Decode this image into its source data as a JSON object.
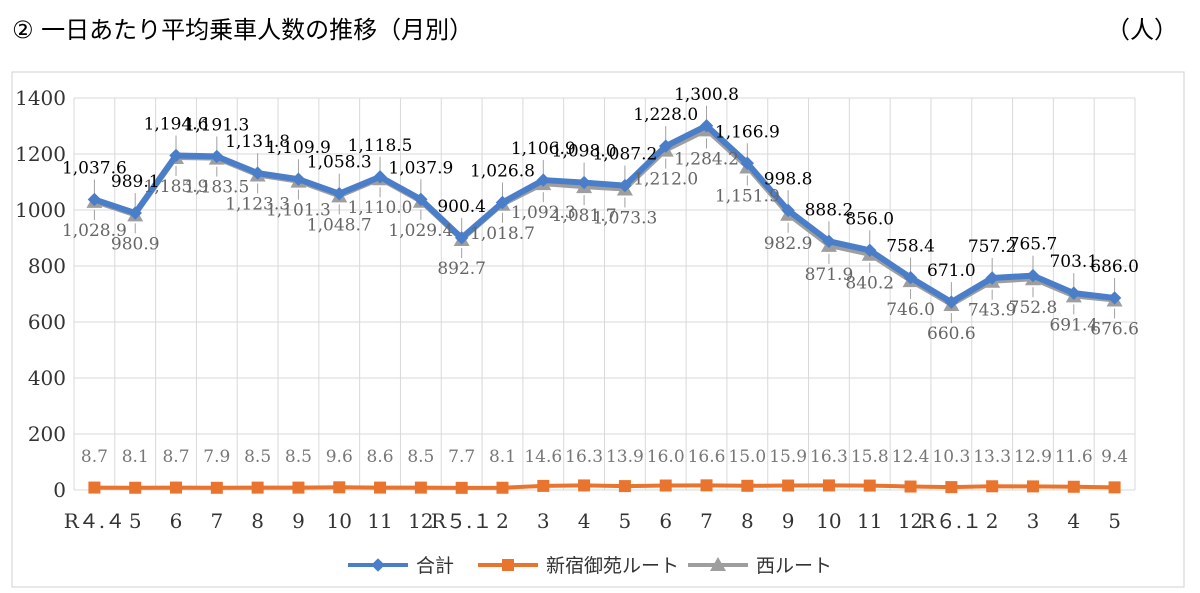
{
  "title": "② 一日あたり平均乗車人数の推移（月別）",
  "unit": "（人）",
  "colors": {
    "total": "#4A7EC9",
    "shinjuku": "#E8742D",
    "nishi": "#9E9E9E"
  },
  "chart_data": {
    "type": "line",
    "categories": [
      "R４.４",
      "5",
      "6",
      "7",
      "8",
      "9",
      "10",
      "11",
      "12",
      "R５.１",
      "2",
      "3",
      "4",
      "5",
      "6",
      "7",
      "8",
      "9",
      "10",
      "11",
      "12",
      "R６.１",
      "2",
      "3",
      "4",
      "5"
    ],
    "ylim": [
      0,
      1400
    ],
    "yticks": [
      0,
      200,
      400,
      600,
      800,
      1000,
      1200,
      1400
    ],
    "grid": true,
    "legend": "bottom",
    "series": [
      {
        "name": "合計",
        "marker": "diamond",
        "values": [
          1037.6,
          989.1,
          1194.6,
          1191.3,
          1131.8,
          1109.9,
          1058.3,
          1118.5,
          1037.9,
          900.4,
          1026.8,
          1106.9,
          1098.0,
          1087.2,
          1228.0,
          1300.8,
          1166.9,
          998.8,
          888.2,
          856.0,
          758.4,
          671.0,
          757.2,
          765.7,
          703.1,
          686.0
        ],
        "labels": [
          "1,037.6",
          "989.1",
          "1,194.6",
          "1,191.3",
          "1,131.8",
          "1,109.9",
          "1,058.3",
          "1,118.5",
          "1,037.9",
          "900.4",
          "1,026.8",
          "1,106.9",
          "1,098.0",
          "1,087.2",
          "1,228.0",
          "1,300.8",
          "1,166.9",
          "998.8",
          "888.2",
          "856.0",
          "758.4",
          "671.0",
          "757.2",
          "765.7",
          "703.1",
          "686.0"
        ]
      },
      {
        "name": "新宿御苑ルート",
        "marker": "square",
        "values": [
          8.7,
          8.1,
          8.7,
          7.9,
          8.5,
          8.5,
          9.6,
          8.6,
          8.5,
          7.7,
          8.1,
          14.6,
          16.3,
          13.9,
          16.0,
          16.6,
          15.0,
          15.9,
          16.3,
          15.8,
          12.4,
          10.3,
          13.3,
          12.9,
          11.6,
          9.4
        ],
        "labels": [
          "8.7",
          "8.1",
          "8.7",
          "7.9",
          "8.5",
          "8.5",
          "9.6",
          "8.6",
          "8.5",
          "7.7",
          "8.1",
          "14.6",
          "16.3",
          "13.9",
          "16.0",
          "16.6",
          "15.0",
          "15.9",
          "16.3",
          "15.8",
          "12.4",
          "10.3",
          "13.3",
          "12.9",
          "11.6",
          "9.4"
        ]
      },
      {
        "name": "西ルート",
        "marker": "triangle",
        "values": [
          1028.9,
          980.9,
          1185.9,
          1183.5,
          1123.3,
          1101.3,
          1048.7,
          1110.0,
          1029.4,
          892.7,
          1018.7,
          1092.3,
          1081.7,
          1073.3,
          1212.0,
          1284.2,
          1151.9,
          982.9,
          871.9,
          840.2,
          746.0,
          660.6,
          743.9,
          752.8,
          691.4,
          676.6
        ],
        "labels": [
          "1,028.9",
          "980.9",
          "1,185.9",
          "1,183.5",
          "1,123.3",
          "1,101.3",
          "1,048.7",
          "1,110.0",
          "1,029.4",
          "892.7",
          "1,018.7",
          "1,092.3",
          "1,081.7",
          "1,073.3",
          "1,212.0",
          "1,284.2",
          "1,151.9",
          "982.9",
          "871.9",
          "840.2",
          "746.0",
          "660.6",
          "743.9",
          "752.8",
          "691.4",
          "676.6"
        ]
      }
    ]
  }
}
